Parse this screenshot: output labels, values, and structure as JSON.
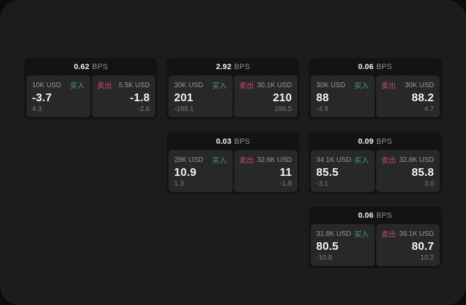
{
  "board": {
    "bps_unit_label": "BPS",
    "buy_label": "买入",
    "sell_label": "卖出"
  },
  "colors": {
    "buy_green": "#3fa06c",
    "sell_red": "#c44e68",
    "panel_bg": "#1c1c1e",
    "card_bg": "#131314",
    "tile_bg": "#28282a"
  },
  "cards": [
    {
      "row": 0,
      "col": 0,
      "bps": "0.62",
      "bps_unit": "BPS",
      "buy": {
        "amount": "10K USD",
        "label": "买入",
        "price": "-3.7",
        "delta": "4.3"
      },
      "sell": {
        "label": "卖出",
        "amount": "5.5K USD",
        "price": "-1.8",
        "delta": "-2.6"
      }
    },
    {
      "row": 0,
      "col": 1,
      "bps": "2.92",
      "bps_unit": "BPS",
      "buy": {
        "amount": "30K USD",
        "label": "买入",
        "price": "201",
        "delta": "-188.1"
      },
      "sell": {
        "label": "卖出",
        "amount": "30.1K USD",
        "price": "210",
        "delta": "196.5"
      }
    },
    {
      "row": 0,
      "col": 2,
      "bps": "0.06",
      "bps_unit": "BPS",
      "buy": {
        "amount": "30K USD",
        "label": "买入",
        "price": "88",
        "delta": "-4.9"
      },
      "sell": {
        "label": "卖出",
        "amount": "30K USD",
        "price": "88.2",
        "delta": "4.7"
      }
    },
    {
      "row": 1,
      "col": 1,
      "bps": "0.03",
      "bps_unit": "BPS",
      "buy": {
        "amount": "28K USD",
        "label": "买入",
        "price": "10.9",
        "delta": "1.3"
      },
      "sell": {
        "label": "卖出",
        "amount": "32.6K USD",
        "price": "11",
        "delta": "-1.8"
      }
    },
    {
      "row": 1,
      "col": 2,
      "bps": "0.09",
      "bps_unit": "BPS",
      "buy": {
        "amount": "34.1K USD",
        "label": "买入",
        "price": "85.5",
        "delta": "-3.1"
      },
      "sell": {
        "label": "卖出",
        "amount": "32.8K USD",
        "price": "85.8",
        "delta": "3.0"
      }
    },
    {
      "row": 2,
      "col": 2,
      "bps": "0.06",
      "bps_unit": "BPS",
      "buy": {
        "amount": "31.8K USD",
        "label": "买入",
        "price": "80.5",
        "delta": "-10.8"
      },
      "sell": {
        "label": "卖出",
        "amount": "39.1K USD",
        "price": "80.7",
        "delta": "10.2"
      }
    }
  ]
}
